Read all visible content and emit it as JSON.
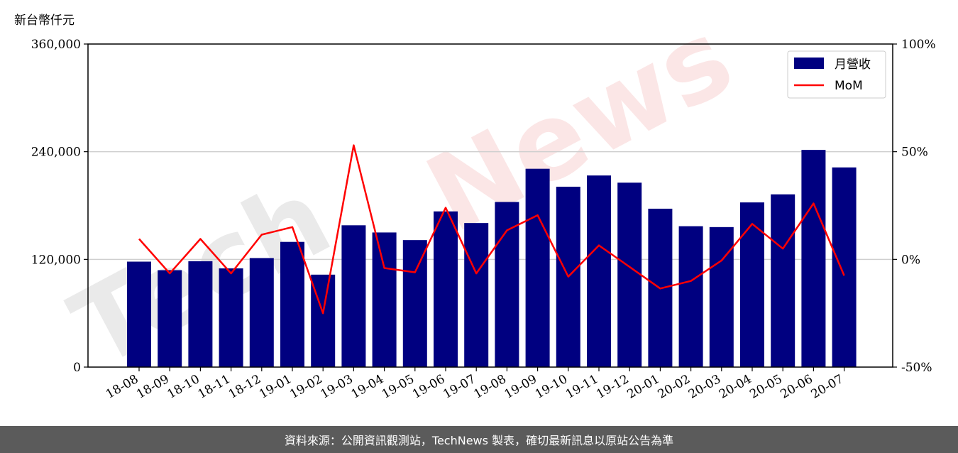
{
  "chart_data": {
    "type": "bar",
    "y_unit_label": "新台幣仟元",
    "categories": [
      "18-08",
      "18-09",
      "18-10",
      "18-11",
      "18-12",
      "19-01",
      "19-02",
      "19-03",
      "19-04",
      "19-05",
      "19-06",
      "19-07",
      "19-08",
      "19-09",
      "19-10",
      "19-11",
      "19-12",
      "20-01",
      "20-02",
      "20-03",
      "20-04",
      "20-05",
      "20-06",
      "20-07"
    ],
    "series": [
      {
        "name": "月營收",
        "type": "bar",
        "axis": "left",
        "color": "#000080",
        "values": [
          117500,
          108000,
          118000,
          110000,
          121500,
          139500,
          103000,
          158000,
          150000,
          141500,
          173500,
          160500,
          184000,
          221000,
          201000,
          213500,
          205500,
          176500,
          157000,
          156000,
          183500,
          192500,
          242000,
          222500
        ]
      },
      {
        "name": "MoM",
        "type": "line",
        "axis": "right",
        "color": "#ff0000",
        "values": [
          9.5,
          -6.5,
          9.5,
          -6.5,
          11.5,
          15,
          -25,
          53,
          -4,
          -6,
          24,
          -6.5,
          13.5,
          20.5,
          -8,
          6.5,
          -3.5,
          -13.5,
          -10,
          -0.5,
          16.5,
          5,
          26,
          -7.5
        ]
      }
    ],
    "y_left": {
      "lim": [
        0,
        360000
      ],
      "ticks": [
        "0",
        "120,000",
        "240,000",
        "360,000"
      ],
      "tick_values": [
        0,
        120000,
        240000,
        360000
      ]
    },
    "y_right": {
      "lim": [
        -50,
        100
      ],
      "ticks": [
        "-50%",
        "0%",
        "50%",
        "100%"
      ],
      "tick_values": [
        -50,
        0,
        50,
        100
      ]
    },
    "grid": "horizontal",
    "legend": {
      "placement": "top-right",
      "items": [
        "月營收",
        "MoM"
      ]
    }
  },
  "watermark": "TechNews",
  "footer": {
    "text": "資料來源：公開資訊觀測站，TechNews 製表，確切最新訊息以原站公告為準"
  }
}
